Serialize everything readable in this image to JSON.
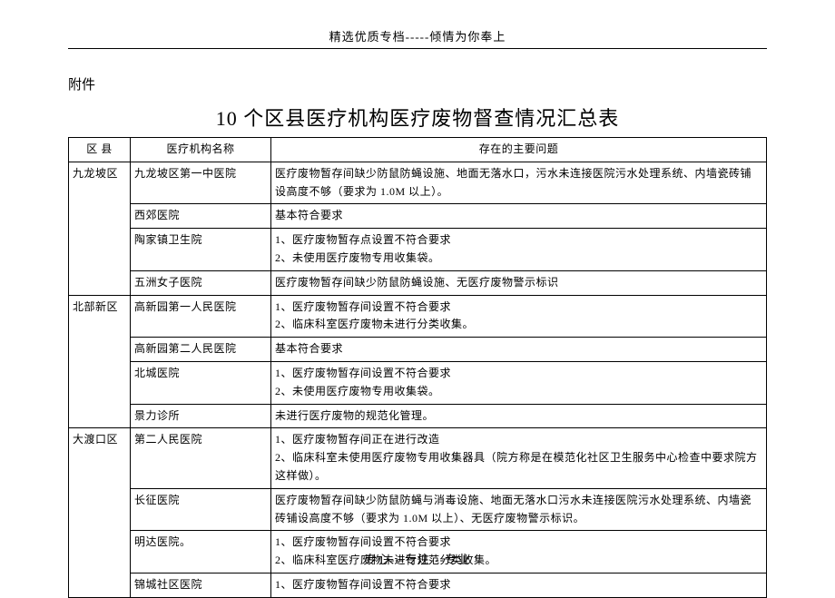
{
  "header": "精选优质专档-----倾情为你奉上",
  "attachment_label": "附件",
  "title": "10 个区县医疗机构医疗废物督查情况汇总表",
  "footer": "专心---专注---专业",
  "table": {
    "headers": {
      "district": "区 县",
      "hospital": "医疗机构名称",
      "issues": "存在的主要问题"
    },
    "rows": [
      {
        "district": "九龙坡区",
        "hospital": "九龙坡区第一中医院",
        "issues": "医疗废物暂存间缺少防鼠防蝇设施、地面无落水口，污水未连接医院污水处理系统、内墙瓷砖铺设高度不够（要求为 1.0M 以上）。",
        "district_rowspan": 4
      },
      {
        "hospital": "西郊医院",
        "issues": "基本符合要求"
      },
      {
        "hospital": "陶家镇卫生院",
        "issues": "1、医疗废物暂存点设置不符合要求\n2、未使用医疗废物专用收集袋。"
      },
      {
        "hospital": "五洲女子医院",
        "issues": "医疗废物暂存间缺少防鼠防蝇设施、无医疗废物警示标识"
      },
      {
        "district": "北部新区",
        "hospital": "高新园第一人民医院",
        "issues": "1、医疗废物暂存间设置不符合要求\n2、临床科室医疗废物未进行分类收集。",
        "district_rowspan": 4
      },
      {
        "hospital": "高新园第二人民医院",
        "issues": "基本符合要求"
      },
      {
        "hospital": "北城医院",
        "issues": "1、医疗废物暂存间设置不符合要求\n2、未使用医疗废物专用收集袋。"
      },
      {
        "hospital": "景力诊所",
        "issues": "未进行医疗废物的规范化管理。"
      },
      {
        "district": "大渡口区",
        "hospital": "第二人民医院",
        "issues": "1、医疗废物暂存间正在进行改造\n2、临床科室未使用医疗废物专用收集器具（院方称是在模范化社区卫生服务中心检查中要求院方这样做）。",
        "district_rowspan": 4
      },
      {
        "hospital": "长征医院",
        "issues": "医疗废物暂存间缺少防鼠防蝇与消毒设施、地面无落水口污水未连接医院污水处理系统、内墙瓷砖铺设高度不够（要求为 1.0M 以上）、无医疗废物警示标识。"
      },
      {
        "hospital": "明达医院。",
        "issues": "1、医疗废物暂存间设置不符合要求\n2、临床科室医疗废物未进行规范分类收集。"
      },
      {
        "hospital": "锦城社区医院",
        "issues": "1、医疗废物暂存间设置不符合要求"
      }
    ]
  }
}
